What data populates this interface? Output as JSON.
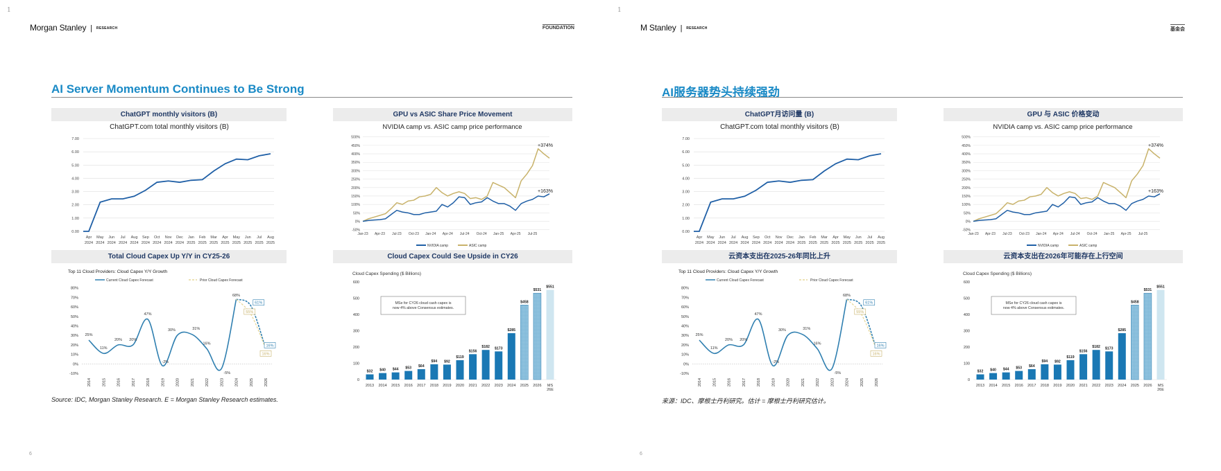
{
  "colors": {
    "title_blue": "#1a8ac6",
    "header_navy": "#1f3864",
    "nvidia": "#1f5fa6",
    "asic": "#c8b26a",
    "capex_line": "#2f7fb0",
    "bar": "#1a78b4",
    "bar_estimate": "#7fb8d8",
    "bar_ms": "#cfe6f0",
    "prior": "#e6d79a"
  },
  "pages": [
    {
      "corner_mark": "1",
      "logo": {
        "name": "Morgan Stanley",
        "divider": "|",
        "sub": "RESEARCH"
      },
      "tag": "FOUNDATION",
      "title": "AI Server Momentum Continues to Be Strong",
      "headers": [
        "ChatGPT monthly visitors (B)",
        "GPU vs ASIC Share Price Movement",
        "Total Cloud Capex Up Y/Y in CY25-26",
        "Cloud Capex Could See Upside in CY26"
      ],
      "source": "Source: IDC, Morgan Stanley Research. E = Morgan Stanley Research estimates.",
      "page_number": "6"
    },
    {
      "corner_mark": "1",
      "logo": {
        "name": "M        Stanley",
        "divider": "|",
        "sub": "RESEARCH"
      },
      "tag": "基金会",
      "title": "AI服务器势头持续强劲",
      "headers": [
        "ChatGPT月访问量 (B)",
        "GPU 与 ASIC 价格变动",
        "云资本支出在2025-26年同比上升",
        "云资本支出在2026年可能存在上行空间"
      ],
      "source": "来源：IDC、摩根士丹利研究。估计 = 摩根士丹利研究估计。",
      "page_number": "6"
    }
  ],
  "chart_data": [
    {
      "type": "line",
      "title": "ChatGPT.com total monthly visitors (B)",
      "categories": [
        [
          "Apr",
          "2024"
        ],
        [
          "May",
          "2024"
        ],
        [
          "Jun",
          "2024"
        ],
        [
          "Jul",
          "2024"
        ],
        [
          "Aug",
          "2024"
        ],
        [
          "Sep",
          "2024"
        ],
        [
          "Oct",
          "2024"
        ],
        [
          "Nov",
          "2024"
        ],
        [
          "Dec",
          "2024"
        ],
        [
          "Jan",
          "2025"
        ],
        [
          "Feb",
          "2025"
        ],
        [
          "Mar",
          "2025"
        ],
        [
          "Apr",
          "2025"
        ],
        [
          "May",
          "2025"
        ],
        [
          "Jun",
          "2025"
        ],
        [
          "Jul",
          "2025"
        ],
        [
          "Aug",
          "2025"
        ]
      ],
      "values": [
        0,
        2.2,
        2.45,
        2.45,
        2.65,
        3.1,
        3.7,
        3.8,
        3.7,
        3.85,
        3.9,
        4.55,
        5.1,
        5.45,
        5.4,
        5.7,
        5.85
      ],
      "ylim": [
        0,
        7
      ],
      "yticks": [
        "0.00",
        "1.00",
        "2.00",
        "3.00",
        "4.00",
        "5.00",
        "6.00",
        "7.00"
      ],
      "grid": true
    },
    {
      "type": "line",
      "title": "NVIDIA camp vs. ASIC camp price performance",
      "x_ticks": [
        "Jan-23",
        "Apr-23",
        "Jul-23",
        "Oct-23",
        "Jan-24",
        "Apr-24",
        "Jul-24",
        "Oct-24",
        "Jan-25",
        "Apr-25",
        "Jul-25"
      ],
      "yticks": [
        "-50%",
        "0%",
        "50%",
        "100%",
        "150%",
        "200%",
        "250%",
        "300%",
        "350%",
        "400%",
        "450%",
        "500%"
      ],
      "ylim": [
        -50,
        500
      ],
      "series": [
        {
          "name": "NVIDIA camp",
          "values": [
            0,
            5,
            8,
            10,
            15,
            40,
            65,
            55,
            50,
            40,
            40,
            50,
            55,
            60,
            100,
            85,
            110,
            145,
            140,
            100,
            110,
            115,
            140,
            120,
            105,
            105,
            90,
            65,
            105,
            120,
            130,
            150,
            145,
            163
          ],
          "end_label": "+163%"
        },
        {
          "name": "ASIC camp",
          "values": [
            0,
            15,
            25,
            35,
            45,
            75,
            110,
            100,
            120,
            125,
            145,
            150,
            160,
            200,
            170,
            150,
            165,
            175,
            165,
            135,
            140,
            130,
            150,
            230,
            215,
            200,
            170,
            140,
            240,
            280,
            330,
            430,
            400,
            374
          ],
          "end_label": "+374%"
        }
      ],
      "legend": "bottom",
      "grid": true
    },
    {
      "type": "line",
      "title": "Top 11 Cloud Providers: Cloud Capex Y/Y Growth",
      "categories": [
        "2014",
        "2015",
        "2016",
        "2017",
        "2018",
        "2019",
        "2020",
        "2021",
        "2022",
        "2023",
        "2024",
        "2025",
        "2026"
      ],
      "yticks": [
        "-10%",
        "0%",
        "10%",
        "20%",
        "30%",
        "40%",
        "50%",
        "60%",
        "70%",
        "80%"
      ],
      "ylim": [
        -10,
        80
      ],
      "series": [
        {
          "name": "Current Cloud Capex Forecast",
          "values": [
            25,
            11,
            20,
            20,
            47,
            -2,
            30,
            31,
            16,
            -5,
            68,
            61,
            16
          ],
          "labels": [
            "25%",
            "11%",
            "20%",
            "20%",
            "47%",
            "-2%",
            "30%",
            "31%",
            "16%",
            "-5%",
            "68%",
            "61%",
            "16%"
          ]
        },
        {
          "name": "Prior Cloud Capex Forecast",
          "values": [
            null,
            null,
            null,
            null,
            null,
            null,
            null,
            null,
            null,
            null,
            68,
            55,
            16
          ],
          "labels": [
            "",
            "",
            "",
            "",
            "",
            "",
            "",
            "",
            "",
            "",
            "",
            "55%",
            "16%"
          ]
        }
      ],
      "legend": "top"
    },
    {
      "type": "bar",
      "ylabel": "Cloud Capex Spending ($ Billions)",
      "categories": [
        "2013",
        "2014",
        "2015",
        "2016",
        "2017",
        "2018",
        "2019",
        "2020",
        "2021",
        "2022",
        "2023",
        "2024",
        "2025",
        "2026",
        "MS 26E"
      ],
      "values": [
        32,
        40,
        44,
        53,
        64,
        94,
        92,
        119,
        156,
        182,
        173,
        285,
        458,
        531,
        551
      ],
      "labels": [
        "$32",
        "$40",
        "$44",
        "$53",
        "$64",
        "$94",
        "$92",
        "$119",
        "$156",
        "$182",
        "$173",
        "$285",
        "$458",
        "$531",
        "$551"
      ],
      "yticks": [
        "0",
        "100",
        "200",
        "300",
        "400",
        "500",
        "600"
      ],
      "ylim": [
        0,
        600
      ],
      "annotation": "MSe for CY26 cloud cash capex is now 4% above Consensus estimates."
    }
  ]
}
